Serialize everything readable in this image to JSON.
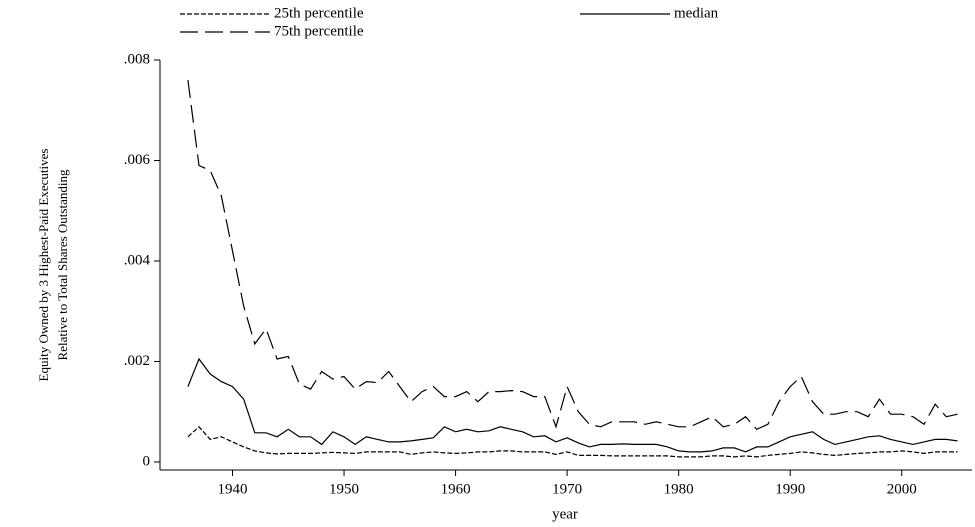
{
  "chart_data": {
    "type": "line",
    "y_label": [
      "Equity Owned by 3 Highest-Paid Executives",
      "Relative to Total Shares Outstanding"
    ],
    "x_label": "year",
    "x": [
      1936,
      1937,
      1938,
      1939,
      1940,
      1941,
      1942,
      1943,
      1944,
      1945,
      1946,
      1947,
      1948,
      1949,
      1950,
      1951,
      1952,
      1953,
      1954,
      1955,
      1956,
      1957,
      1958,
      1959,
      1960,
      1961,
      1962,
      1963,
      1964,
      1965,
      1966,
      1967,
      1968,
      1969,
      1970,
      1971,
      1972,
      1973,
      1974,
      1975,
      1976,
      1977,
      1978,
      1979,
      1980,
      1981,
      1982,
      1983,
      1984,
      1985,
      1986,
      1987,
      1988,
      1989,
      1990,
      1991,
      1992,
      1993,
      1994,
      1995,
      1996,
      1997,
      1998,
      1999,
      2000,
      2001,
      2002,
      2003,
      2004,
      2005
    ],
    "series": [
      {
        "name": "25th percentile",
        "color": "#000000",
        "dash": "5,2",
        "values": [
          0.0005,
          0.0007,
          0.00045,
          0.0005,
          0.0004,
          0.0003,
          0.00022,
          0.00018,
          0.00016,
          0.00017,
          0.00017,
          0.00017,
          0.00018,
          0.00019,
          0.00018,
          0.00017,
          0.0002,
          0.0002,
          0.0002,
          0.0002,
          0.00015,
          0.00018,
          0.0002,
          0.00018,
          0.00017,
          0.00018,
          0.0002,
          0.0002,
          0.00022,
          0.00022,
          0.0002,
          0.0002,
          0.0002,
          0.00015,
          0.0002,
          0.00013,
          0.00013,
          0.00013,
          0.00012,
          0.00012,
          0.00012,
          0.00012,
          0.00012,
          0.00012,
          0.0001,
          0.0001,
          0.0001,
          0.00012,
          0.00012,
          0.0001,
          0.00012,
          0.0001,
          0.00013,
          0.00015,
          0.00017,
          0.0002,
          0.00018,
          0.00015,
          0.00013,
          0.00015,
          0.00017,
          0.00018,
          0.0002,
          0.0002,
          0.00022,
          0.0002,
          0.00017,
          0.0002,
          0.0002,
          0.0002
        ]
      },
      {
        "name": "median",
        "color": "#000000",
        "dash": "none",
        "values": [
          0.0015,
          0.00205,
          0.00175,
          0.0016,
          0.0015,
          0.00125,
          0.00058,
          0.00058,
          0.0005,
          0.00065,
          0.0005,
          0.0005,
          0.00035,
          0.0006,
          0.0005,
          0.00035,
          0.0005,
          0.00045,
          0.0004,
          0.0004,
          0.00042,
          0.00045,
          0.00048,
          0.0007,
          0.0006,
          0.00065,
          0.0006,
          0.00062,
          0.0007,
          0.00065,
          0.0006,
          0.0005,
          0.00052,
          0.0004,
          0.00048,
          0.00038,
          0.0003,
          0.00035,
          0.00035,
          0.00036,
          0.00035,
          0.00035,
          0.00035,
          0.0003,
          0.00022,
          0.0002,
          0.0002,
          0.00022,
          0.00028,
          0.00028,
          0.0002,
          0.0003,
          0.0003,
          0.0004,
          0.0005,
          0.00055,
          0.0006,
          0.00045,
          0.00035,
          0.0004,
          0.00045,
          0.0005,
          0.00052,
          0.00045,
          0.0004,
          0.00035,
          0.0004,
          0.00045,
          0.00045,
          0.00042
        ]
      },
      {
        "name": "75th percentile",
        "color": "#000000",
        "dash": "18,7",
        "values": [
          0.0076,
          0.0059,
          0.0058,
          0.0053,
          0.0042,
          0.0031,
          0.00235,
          0.00265,
          0.00205,
          0.0021,
          0.00155,
          0.00145,
          0.0018,
          0.00165,
          0.0017,
          0.00145,
          0.0016,
          0.00158,
          0.0018,
          0.0015,
          0.0012,
          0.0014,
          0.0015,
          0.0013,
          0.0013,
          0.0014,
          0.0012,
          0.0014,
          0.0014,
          0.00142,
          0.0014,
          0.0013,
          0.0013,
          0.0007,
          0.0015,
          0.001,
          0.00075,
          0.0007,
          0.0008,
          0.0008,
          0.0008,
          0.00075,
          0.0008,
          0.00075,
          0.0007,
          0.0007,
          0.0008,
          0.0009,
          0.0007,
          0.00075,
          0.0009,
          0.00065,
          0.00075,
          0.0012,
          0.0015,
          0.0017,
          0.0012,
          0.00095,
          0.00095,
          0.001,
          0.001,
          0.0009,
          0.00125,
          0.00095,
          0.00095,
          0.0009,
          0.00075,
          0.00115,
          0.0009,
          0.00095
        ]
      }
    ],
    "xlim": [
      1933.5,
      2006.3
    ],
    "xticks": [
      1940,
      1950,
      1960,
      1970,
      1980,
      1990,
      2000
    ],
    "ylim": [
      -0.00016,
      0.008
    ],
    "yticks": [
      0,
      {
        "value": 0.002,
        "label": ".002"
      },
      {
        "value": 0.004,
        "label": ".004"
      },
      {
        "value": 0.006,
        "label": ".006"
      },
      {
        "value": 0.008,
        "label": ".008"
      }
    ],
    "grid": false
  }
}
